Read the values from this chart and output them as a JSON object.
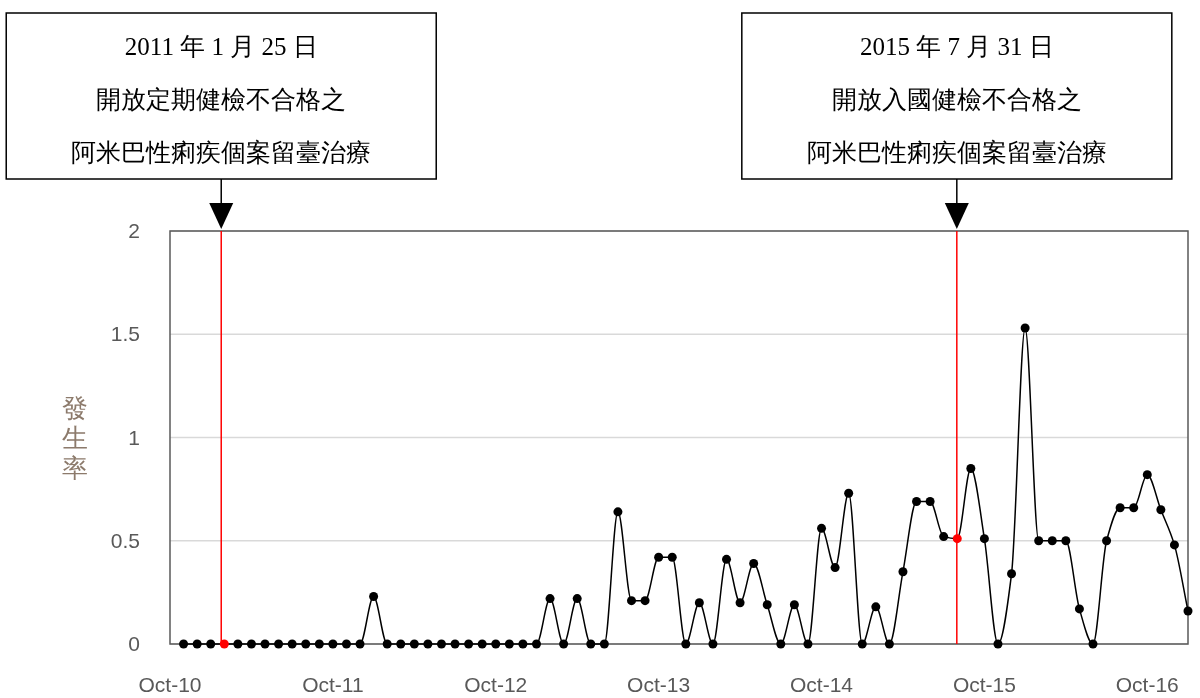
{
  "chart_data": {
    "type": "line",
    "ylabel": "發生率",
    "x": [
      "2010-11",
      "2010-12",
      "2011-01",
      "2011-02",
      "2011-03",
      "2011-04",
      "2011-05",
      "2011-06",
      "2011-07",
      "2011-08",
      "2011-09",
      "2011-10",
      "2011-11",
      "2011-12",
      "2012-01",
      "2012-02",
      "2012-03",
      "2012-04",
      "2012-05",
      "2012-06",
      "2012-07",
      "2012-08",
      "2012-09",
      "2012-10",
      "2012-11",
      "2012-12",
      "2013-01",
      "2013-02",
      "2013-03",
      "2013-04",
      "2013-05",
      "2013-06",
      "2013-07",
      "2013-08",
      "2013-09",
      "2013-10",
      "2013-11",
      "2013-12",
      "2014-01",
      "2014-02",
      "2014-03",
      "2014-04",
      "2014-05",
      "2014-06",
      "2014-07",
      "2014-08",
      "2014-09",
      "2014-10",
      "2014-11",
      "2014-12",
      "2015-01",
      "2015-02",
      "2015-03",
      "2015-04",
      "2015-05",
      "2015-06",
      "2015-07",
      "2015-08",
      "2015-09",
      "2015-10",
      "2015-11",
      "2015-12",
      "2016-01",
      "2016-02",
      "2016-03",
      "2016-04",
      "2016-05",
      "2016-06",
      "2016-07",
      "2016-08",
      "2016-09",
      "2016-10",
      "2016-11",
      "2016-12",
      "2017-01"
    ],
    "series": [
      {
        "color": "#000000",
        "colors": [
          "#000000",
          "#000000",
          "#000000",
          "#ff0000",
          "#000000",
          "#000000",
          "#000000",
          "#000000",
          "#000000",
          "#000000",
          "#000000",
          "#000000",
          "#000000",
          "#000000",
          "#000000",
          "#000000",
          "#000000",
          "#000000",
          "#000000",
          "#000000",
          "#000000",
          "#000000",
          "#000000",
          "#000000",
          "#000000",
          "#000000",
          "#000000",
          "#000000",
          "#000000",
          "#000000",
          "#000000",
          "#000000",
          "#000000",
          "#000000",
          "#000000",
          "#000000",
          "#000000",
          "#000000",
          "#000000",
          "#000000",
          "#000000",
          "#000000",
          "#000000",
          "#000000",
          "#000000",
          "#000000",
          "#000000",
          "#000000",
          "#000000",
          "#000000",
          "#000000",
          "#000000",
          "#000000",
          "#000000",
          "#000000",
          "#000000",
          "#000000",
          "#ff0000",
          "#000000",
          "#000000",
          "#000000",
          "#000000",
          "#000000",
          "#000000",
          "#000000",
          "#000000",
          "#000000",
          "#000000",
          "#000000",
          "#000000",
          "#000000",
          "#000000",
          "#000000",
          "#000000",
          "#000000"
        ],
        "values": [
          0,
          0,
          0,
          0,
          0,
          0,
          0,
          0,
          0,
          0,
          0,
          0,
          0,
          0,
          0.23,
          0,
          0,
          0,
          0,
          0,
          0,
          0,
          0,
          0,
          0,
          0,
          0,
          0.22,
          0,
          0.22,
          0,
          0,
          0.64,
          0.21,
          0.21,
          0.42,
          0.42,
          0,
          0.2,
          0,
          0.41,
          0.2,
          0.39,
          0.19,
          0,
          0.19,
          0,
          0.56,
          0.37,
          0.73,
          0,
          0.18,
          0,
          0.35,
          0.69,
          0.69,
          0.52,
          0.51,
          0.85,
          0.51,
          0,
          0.34,
          1.53,
          0.5,
          0.5,
          0.5,
          0.17,
          0,
          0.5,
          0.66,
          0.66,
          0.82,
          0.65,
          0.48,
          0.16
        ]
      }
    ],
    "xlim": [
      "2010-10",
      "2017-01"
    ],
    "ylim": [
      0,
      2
    ],
    "xticks": [
      {
        "value": "2010-10",
        "label": "Oct-10"
      },
      {
        "value": "2011-10",
        "label": "Oct-11"
      },
      {
        "value": "2012-10",
        "label": "Oct-12"
      },
      {
        "value": "2013-10",
        "label": "Oct-13"
      },
      {
        "value": "2014-10",
        "label": "Oct-14"
      },
      {
        "value": "2015-10",
        "label": "Oct-15"
      },
      {
        "value": "2016-10",
        "label": "Oct-16"
      }
    ],
    "yticks": [
      0,
      0.5,
      1,
      1.5,
      2
    ],
    "grid": "y",
    "marker": "circle",
    "ref_lines": [
      {
        "axis": "x",
        "value": "2011-01-25",
        "color": "#ff0000"
      },
      {
        "axis": "x",
        "value": "2015-07-31",
        "color": "#ff0000"
      }
    ],
    "annotations": [
      "2011 年 1 月 25 日",
      "開放定期健檢不合格之",
      "阿米巴性痢疾個案留臺治療",
      "2015 年 7 月 31 日",
      "開放入國健檢不合格之",
      "阿米巴性痢疾個案留臺治療"
    ]
  }
}
